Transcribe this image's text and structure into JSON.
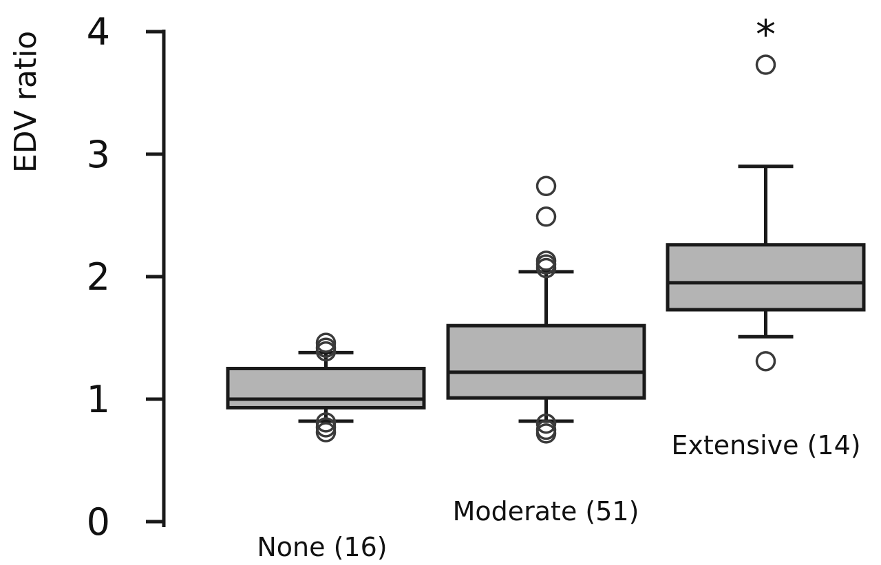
{
  "chart_data": {
    "type": "box",
    "title": "",
    "xlabel": "",
    "ylabel": "EDV ratio",
    "ylim": [
      0,
      4
    ],
    "yticks": [
      0,
      1,
      2,
      3,
      4
    ],
    "grid": false,
    "box_fill": "#b4b4b4",
    "stroke_color": "#1a1a1a",
    "groups": [
      {
        "label": "None (16)",
        "whisker_low": 0.82,
        "q1": 0.93,
        "median": 1.0,
        "q3": 1.25,
        "whisker_high": 1.38,
        "outliers": [
          0.73,
          0.77,
          0.81,
          1.39,
          1.42,
          1.46
        ],
        "annotation": ""
      },
      {
        "label": "Moderate (51)",
        "whisker_low": 0.82,
        "q1": 1.01,
        "median": 1.22,
        "q3": 1.6,
        "whisker_high": 2.04,
        "outliers": [
          0.72,
          0.75,
          0.8,
          2.07,
          2.1,
          2.13,
          2.49,
          2.74
        ],
        "annotation": ""
      },
      {
        "label": "Extensive (14)",
        "whisker_low": 1.51,
        "q1": 1.73,
        "median": 1.95,
        "q3": 2.26,
        "whisker_high": 2.9,
        "outliers": [
          1.31,
          3.73
        ],
        "annotation": "*"
      }
    ]
  }
}
